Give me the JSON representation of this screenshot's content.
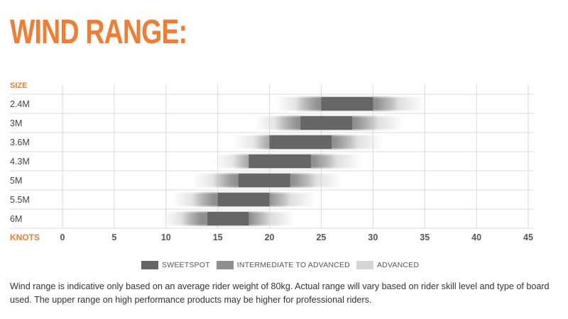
{
  "title": "WIND RANGE:",
  "colors": {
    "accent": "#f47b30",
    "sweetspot": "#666666",
    "intermediate": "#8f8f8f",
    "advanced": "#d6d6d6",
    "grid": "#d9d9d9"
  },
  "legend": {
    "sweetspot": "SWEETSPOT",
    "intermediate": "INTERMEDIATE TO ADVANCED",
    "advanced": "ADVANCED"
  },
  "note": "Wind range is indicative only based on an average rider weight of 80kg. Actual range will vary based on rider skill level and type of board used. The upper range on high performance products may be higher for professional riders.",
  "chart_data": {
    "type": "bar",
    "ylabel": "SIZE",
    "xlabel": "KNOTS",
    "xlim": [
      0,
      45
    ],
    "xticks": [
      0,
      5,
      10,
      15,
      20,
      25,
      30,
      35,
      40,
      45
    ],
    "grid": true,
    "legend_position": "bottom",
    "categories": [
      "2.4M",
      "3M",
      "3.6M",
      "4.3M",
      "5M",
      "5.5M",
      "6M"
    ],
    "series": [
      {
        "name": "ADVANCED",
        "ranges": [
          [
            20.5,
            35
          ],
          [
            18.5,
            33
          ],
          [
            16.5,
            31
          ],
          [
            14.5,
            29
          ],
          [
            12.5,
            27
          ],
          [
            10.5,
            24.5
          ],
          [
            9.5,
            22.5
          ]
        ]
      },
      {
        "name": "INTERMEDIATE TO ADVANCED",
        "ranges": [
          [
            22.5,
            32.5
          ],
          [
            20.5,
            30.5
          ],
          [
            18.5,
            28.5
          ],
          [
            16.5,
            26.5
          ],
          [
            14.5,
            24.5
          ],
          [
            12.5,
            22
          ],
          [
            11.5,
            20
          ]
        ]
      },
      {
        "name": "SWEETSPOT",
        "ranges": [
          [
            25,
            30
          ],
          [
            23,
            28
          ],
          [
            20,
            26
          ],
          [
            18,
            24
          ],
          [
            17,
            22
          ],
          [
            15,
            20
          ],
          [
            14,
            18
          ]
        ]
      }
    ]
  }
}
